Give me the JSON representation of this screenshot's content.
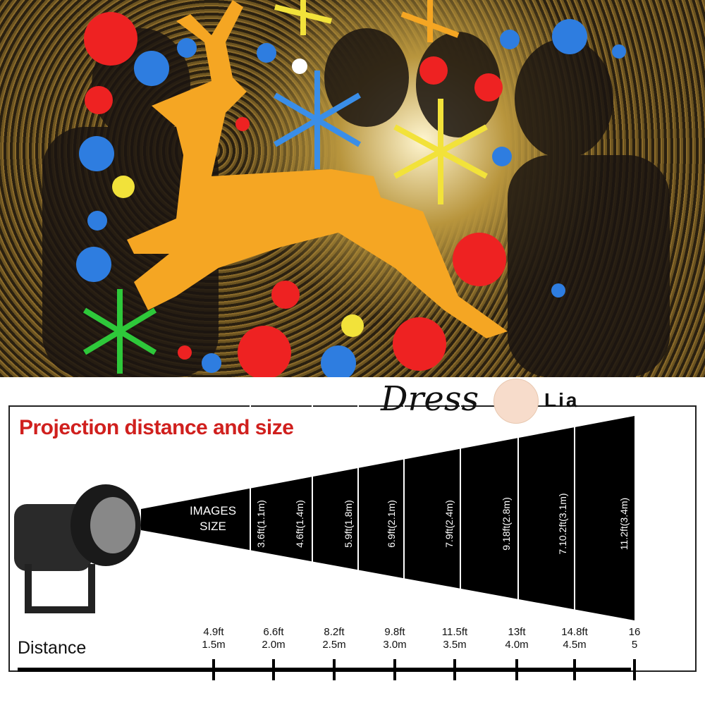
{
  "photo": {
    "description_colors": {
      "deer": "#f5a623",
      "red": "#ee2222",
      "blue": "#2e7de0",
      "yellow": "#f2e23a",
      "green": "#2ec83a"
    }
  },
  "title": "Projection distance and size",
  "images_size_label": [
    "IMAGES",
    "SIZE"
  ],
  "sizes": [
    "3.6ft(1.1m)",
    "4.6ft(1.4m)",
    "5.9ft(1.8m)",
    "6.9ft(2.1m)",
    "7.9ft(2.4m)",
    "9.18ft(2.8m)",
    "7.10.2ft(3.1m)",
    "11.2ft(3.4m)"
  ],
  "distance_label": "Distance",
  "distances": [
    {
      "ft": "4.9ft",
      "m": "1.5m"
    },
    {
      "ft": "6.6ft",
      "m": "2.0m"
    },
    {
      "ft": "8.2ft",
      "m": "2.5m"
    },
    {
      "ft": "9.8ft",
      "m": "3.0m"
    },
    {
      "ft": "11.5ft",
      "m": "3.5m"
    },
    {
      "ft": "13ft",
      "m": "4.0m"
    },
    {
      "ft": "14.8ft",
      "m": "4.5m"
    },
    {
      "ft": "16",
      "m": "5"
    }
  ],
  "logo": {
    "script": "Dress",
    "text": "Lia"
  }
}
